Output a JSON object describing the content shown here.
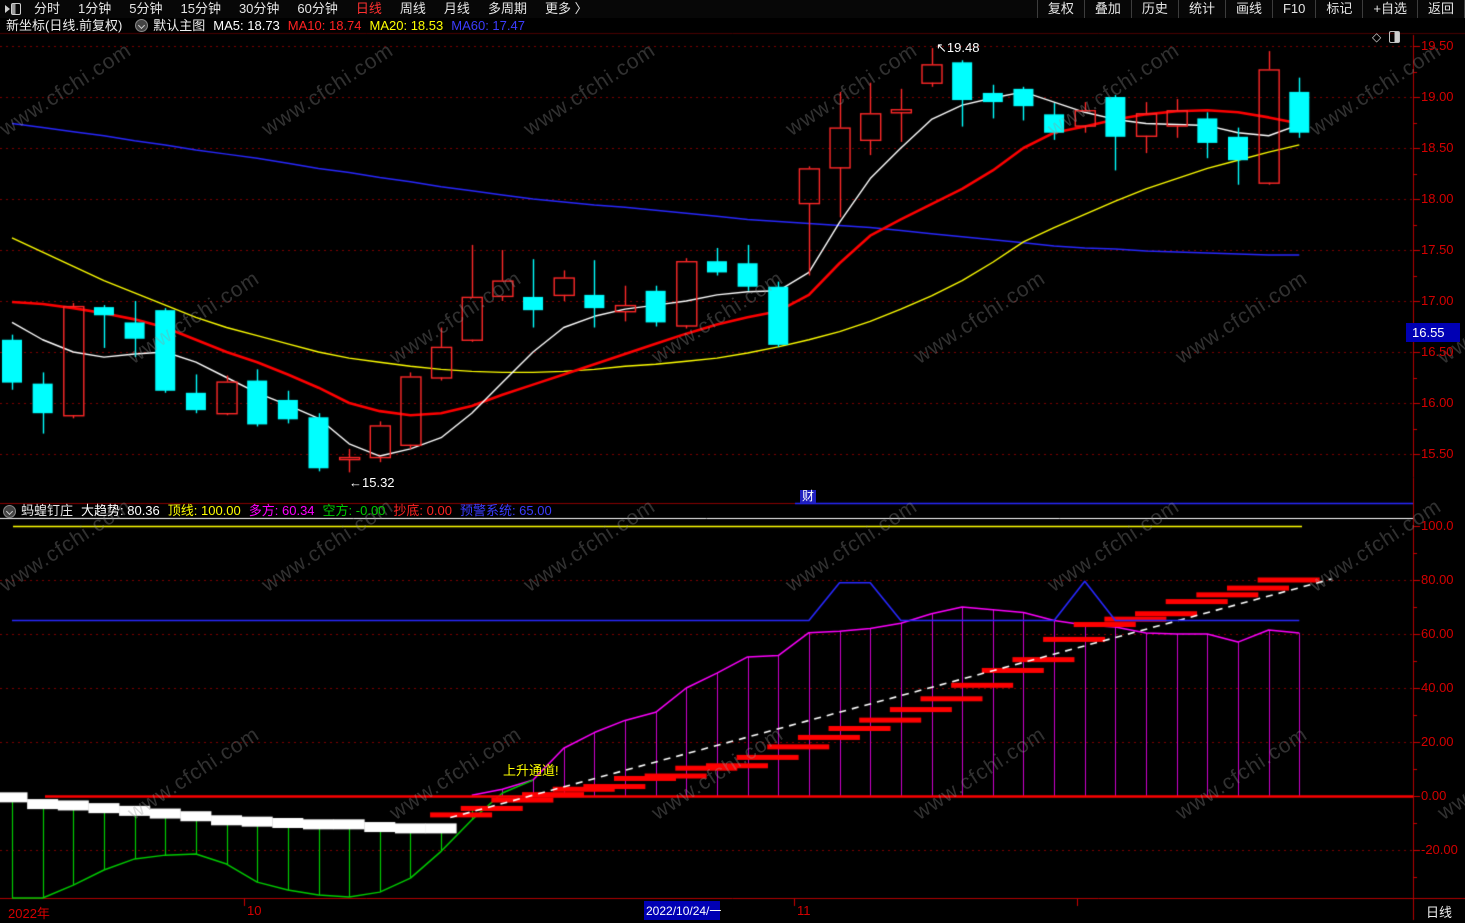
{
  "toolbar": {
    "left_items": [
      {
        "label": "分时",
        "active": false
      },
      {
        "label": "1分钟",
        "active": false
      },
      {
        "label": "5分钟",
        "active": false
      },
      {
        "label": "15分钟",
        "active": false
      },
      {
        "label": "30分钟",
        "active": false
      },
      {
        "label": "60分钟",
        "active": false
      },
      {
        "label": "日线",
        "active": true
      },
      {
        "label": "周线",
        "active": false
      },
      {
        "label": "月线",
        "active": false
      },
      {
        "label": "多周期",
        "active": false
      },
      {
        "label": "更多 〉",
        "active": false
      }
    ],
    "right_items": [
      "复权",
      "叠加",
      "历史",
      "统计",
      "画线",
      "F10",
      "标记",
      "+自选",
      "返回"
    ]
  },
  "info_bar": {
    "title": "新坐标(日线.前复权)",
    "overlay_label": "默认主图",
    "ma_values": [
      {
        "label": "MA5: 18.73",
        "color": "#ffffff"
      },
      {
        "label": "MA10: 18.74",
        "color": "#ff2222"
      },
      {
        "label": "MA20: 18.53",
        "color": "#ffff00"
      },
      {
        "label": "MA60: 17.47",
        "color": "#3c3cff"
      }
    ]
  },
  "main_chart": {
    "y_axis_ticks": [
      {
        "label": "19.50",
        "value": 19.5
      },
      {
        "label": "19.00",
        "value": 19.0
      },
      {
        "label": "18.50",
        "value": 18.5
      },
      {
        "label": "18.00",
        "value": 18.0
      },
      {
        "label": "17.50",
        "value": 17.5
      },
      {
        "label": "17.00",
        "value": 17.0
      },
      {
        "label": "16.50",
        "value": 16.5
      },
      {
        "label": "16.00",
        "value": 16.0
      },
      {
        "label": "15.50",
        "value": 15.5
      }
    ],
    "price_highlight": {
      "text": "16.55"
    },
    "annotations": {
      "high_label": "↖19.48",
      "low_label": "←15.32",
      "marker_label": "财"
    },
    "icons": {
      "diamond": "◇"
    }
  },
  "indicator_panel": {
    "legend": [
      {
        "text": "蚂蝗钉庄",
        "color": "#e8e8e8"
      },
      {
        "text": "大趋势: 80.36",
        "color": "#ffffff"
      },
      {
        "text": "顶线: 100.00",
        "color": "#ffff00"
      },
      {
        "text": "多方: 60.34",
        "color": "#ff00ff"
      },
      {
        "text": "空方: -0.00",
        "color": "#00cc00"
      },
      {
        "text": "抄底: 0.00",
        "color": "#ff2222"
      },
      {
        "text": "预警系统: 65.00",
        "color": "#3c3cff"
      }
    ],
    "y_axis_ticks": [
      {
        "label": "100.0",
        "value": 100
      },
      {
        "label": "80.00",
        "value": 80
      },
      {
        "label": "60.00",
        "value": 60
      },
      {
        "label": "40.00",
        "value": 40
      },
      {
        "label": "20.00",
        "value": 20
      },
      {
        "label": "0.00",
        "value": 0
      },
      {
        "label": "-20.00",
        "value": -20
      }
    ],
    "annotation": {
      "text": "上升通道!",
      "color": "#ffff00"
    }
  },
  "x_axis": {
    "year_label": "2022年",
    "month_ticks": [
      {
        "label": "10",
        "x": 247
      },
      {
        "label": "11",
        "x": 797
      },
      {
        "label": "",
        "x": 1080
      }
    ],
    "selected_date": "2022/10/24/一",
    "period_label": "日线"
  },
  "watermark": {
    "text": "www.cfchi.com"
  },
  "chart_data": [
    {
      "type": "candlestick",
      "title": "新坐标(日线.前复权)",
      "ylabel": "price",
      "ylim": [
        15.1,
        19.6
      ],
      "grid": "dotted-horizontal",
      "up_color": "#ff2828",
      "down_color": "#00ffff",
      "high_point": 19.48,
      "low_point": 15.32,
      "candles_ohlc": [
        [
          16.62,
          16.67,
          16.13,
          16.2
        ],
        [
          16.19,
          16.3,
          15.7,
          15.9
        ],
        [
          15.88,
          16.98,
          15.85,
          16.95
        ],
        [
          16.94,
          16.96,
          16.54,
          16.86
        ],
        [
          16.79,
          17.0,
          16.45,
          16.63
        ],
        [
          16.91,
          16.93,
          16.1,
          16.12
        ],
        [
          16.1,
          16.28,
          15.9,
          15.93
        ],
        [
          15.9,
          16.27,
          15.88,
          16.21
        ],
        [
          16.22,
          16.33,
          15.77,
          15.79
        ],
        [
          16.03,
          16.12,
          15.8,
          15.84
        ],
        [
          15.86,
          15.9,
          15.33,
          15.36
        ],
        [
          15.45,
          15.55,
          15.32,
          15.47
        ],
        [
          15.47,
          15.82,
          15.42,
          15.78
        ],
        [
          15.59,
          16.3,
          15.55,
          16.26
        ],
        [
          16.25,
          16.74,
          16.22,
          16.55
        ],
        [
          16.62,
          17.55,
          16.6,
          17.04
        ],
        [
          17.05,
          17.5,
          17.0,
          17.2
        ],
        [
          17.04,
          17.41,
          16.74,
          16.91
        ],
        [
          17.06,
          17.3,
          17.0,
          17.23
        ],
        [
          17.06,
          17.4,
          16.74,
          16.93
        ],
        [
          16.9,
          17.15,
          16.8,
          16.96
        ],
        [
          17.1,
          17.15,
          16.75,
          16.79
        ],
        [
          16.76,
          17.42,
          16.73,
          17.39
        ],
        [
          17.39,
          17.52,
          17.25,
          17.28
        ],
        [
          17.37,
          17.55,
          17.1,
          17.14
        ],
        [
          17.14,
          17.19,
          16.55,
          16.57
        ],
        [
          17.96,
          18.32,
          17.25,
          18.3
        ],
        [
          18.31,
          19.05,
          17.82,
          18.7
        ],
        [
          18.58,
          19.14,
          18.43,
          18.84
        ],
        [
          18.85,
          19.08,
          18.56,
          18.88
        ],
        [
          19.14,
          19.48,
          19.1,
          19.32
        ],
        [
          19.34,
          19.36,
          18.71,
          18.97
        ],
        [
          19.04,
          19.12,
          18.79,
          18.95
        ],
        [
          19.08,
          19.1,
          18.77,
          18.91
        ],
        [
          18.83,
          18.94,
          18.58,
          18.65
        ],
        [
          18.72,
          18.95,
          18.65,
          18.87
        ],
        [
          19.0,
          19.02,
          18.28,
          18.61
        ],
        [
          18.62,
          18.95,
          18.45,
          18.84
        ],
        [
          18.72,
          18.98,
          18.6,
          18.87
        ],
        [
          18.79,
          18.85,
          18.4,
          18.55
        ],
        [
          18.61,
          18.7,
          18.14,
          18.38
        ],
        [
          18.16,
          19.45,
          18.14,
          19.27
        ],
        [
          19.05,
          19.19,
          18.6,
          18.65
        ]
      ],
      "ma_series": [
        {
          "name": "MA5",
          "color": "#ffffff",
          "width": 1.4,
          "values": [
            16.79,
            16.62,
            16.5,
            16.45,
            16.48,
            16.5,
            16.4,
            16.25,
            16.1,
            15.98,
            15.85,
            15.6,
            15.48,
            15.55,
            15.66,
            15.9,
            16.2,
            16.5,
            16.74,
            16.85,
            16.92,
            16.96,
            17.0,
            17.06,
            17.09,
            17.1,
            17.28,
            17.77,
            18.2,
            18.5,
            18.78,
            18.92,
            18.99,
            19.05,
            18.95,
            18.85,
            18.78,
            18.74,
            18.73,
            18.72,
            18.65,
            18.62,
            18.73
          ]
        },
        {
          "name": "MA10",
          "color": "#ff0000",
          "width": 2.6,
          "values": [
            16.99,
            16.97,
            16.93,
            16.88,
            16.82,
            16.74,
            16.62,
            16.5,
            16.4,
            16.28,
            16.15,
            16.0,
            15.92,
            15.88,
            15.9,
            15.97,
            16.08,
            16.18,
            16.28,
            16.38,
            16.48,
            16.58,
            16.68,
            16.77,
            16.84,
            16.9,
            17.06,
            17.37,
            17.64,
            17.8,
            17.95,
            18.1,
            18.28,
            18.5,
            18.65,
            18.71,
            18.78,
            18.83,
            18.86,
            18.87,
            18.85,
            18.8,
            18.74
          ]
        },
        {
          "name": "MA20",
          "color": "#ffff00",
          "width": 1.4,
          "values": [
            17.62,
            17.48,
            17.34,
            17.2,
            17.08,
            16.96,
            16.84,
            16.74,
            16.66,
            16.58,
            16.5,
            16.44,
            16.4,
            16.36,
            16.33,
            16.31,
            16.3,
            16.3,
            16.31,
            16.33,
            16.36,
            16.38,
            16.41,
            16.44,
            16.49,
            16.55,
            16.62,
            16.7,
            16.8,
            16.92,
            17.05,
            17.2,
            17.38,
            17.58,
            17.72,
            17.85,
            17.98,
            18.1,
            18.2,
            18.3,
            18.38,
            18.46,
            18.53
          ]
        },
        {
          "name": "MA60",
          "color": "#2828ff",
          "width": 1.5,
          "values": [
            18.74,
            18.7,
            18.66,
            18.62,
            18.57,
            18.53,
            18.48,
            18.44,
            18.4,
            18.35,
            18.3,
            18.26,
            18.21,
            18.17,
            18.12,
            18.08,
            18.04,
            18.0,
            17.97,
            17.94,
            17.92,
            17.89,
            17.86,
            17.83,
            17.8,
            17.78,
            17.76,
            17.74,
            17.72,
            17.69,
            17.66,
            17.63,
            17.6,
            17.57,
            17.54,
            17.52,
            17.51,
            17.49,
            17.48,
            17.47,
            17.46,
            17.45,
            17.45
          ]
        }
      ]
    },
    {
      "type": "line",
      "title": "蚂蝗钉庄",
      "ylim": [
        -40,
        105
      ],
      "grid": "dotted-horizontal",
      "series": [
        {
          "name": "顶线",
          "color": "#ffff00",
          "type": "hline",
          "value": 100
        },
        {
          "name": "零轴",
          "color": "#ff0000",
          "type": "hline",
          "value": 0
        },
        {
          "name": "预警系统",
          "color": "#2828ff",
          "type": "line",
          "values": [
            65,
            65,
            65,
            65,
            65,
            65,
            65,
            65,
            65,
            65,
            65,
            65,
            65,
            65,
            65,
            65,
            65,
            65,
            65,
            65,
            65,
            65,
            65,
            65,
            65,
            65,
            65,
            79,
            79,
            65,
            65,
            65,
            65,
            65,
            65,
            79.5,
            65,
            65,
            65,
            65,
            65,
            65,
            65
          ]
        },
        {
          "name": "多方",
          "color": "#ff00ff",
          "type": "line-hatch-to-zero",
          "values": [
            null,
            null,
            null,
            null,
            null,
            null,
            null,
            null,
            null,
            null,
            null,
            null,
            null,
            null,
            null,
            0.3,
            2.5,
            5.9,
            17.7,
            23.5,
            28,
            31,
            40,
            45.5,
            51.5,
            52,
            60.5,
            61,
            62,
            64,
            67.5,
            70,
            69,
            68,
            65,
            63.3,
            62.6,
            60.4,
            60,
            60,
            57,
            61.5,
            60.34
          ]
        },
        {
          "name": "空方",
          "color": "#00cc00",
          "type": "line",
          "values": [
            -37.8,
            -37.8,
            -33,
            -27.4,
            -23.3,
            -21.9,
            -21.5,
            -25.2,
            -31.9,
            -34.8,
            -36.7,
            -37.4,
            -35.6,
            -30.4,
            -20.5,
            -8.9,
            1.1,
            5.9
          ]
        },
        {
          "name": "白色持仓带",
          "color": "#ffffff",
          "type": "step-band",
          "values": [
            -0.5,
            -3,
            -3.5,
            -4.5,
            -5.5,
            -6.5,
            -7.5,
            -9,
            -9.5,
            -10,
            -10.5,
            -10.5,
            -11.5,
            -12,
            -12
          ]
        },
        {
          "name": "红色台阶",
          "color": "#ff0000",
          "type": "step-bars",
          "steps": [
            [
              14,
              -7
            ],
            [
              15,
              -4.6
            ],
            [
              16,
              -1.5
            ],
            [
              17,
              0.5
            ],
            [
              18,
              2.5
            ],
            [
              19,
              3.5
            ],
            [
              20,
              6.5
            ],
            [
              21,
              7.4
            ],
            [
              22,
              10.3
            ],
            [
              23,
              11.2
            ],
            [
              24,
              14.3
            ],
            [
              25,
              18.2
            ],
            [
              26,
              21.7
            ],
            [
              27,
              25
            ],
            [
              28,
              28.1
            ],
            [
              29,
              32
            ],
            [
              30,
              36
            ],
            [
              31,
              41
            ],
            [
              32,
              46.5
            ],
            [
              33,
              50.5
            ],
            [
              34,
              58
            ],
            [
              35,
              63.5
            ],
            [
              36,
              65.5
            ],
            [
              37,
              67.5
            ],
            [
              38,
              72
            ],
            [
              39,
              74.5
            ],
            [
              40,
              77
            ],
            [
              41,
              80
            ]
          ]
        },
        {
          "name": "大趋势",
          "color": "#ffffff",
          "type": "dashed-line",
          "index_points": [
            [
              14.3,
              -8
            ],
            [
              43.05,
              80.36
            ]
          ]
        }
      ]
    }
  ]
}
